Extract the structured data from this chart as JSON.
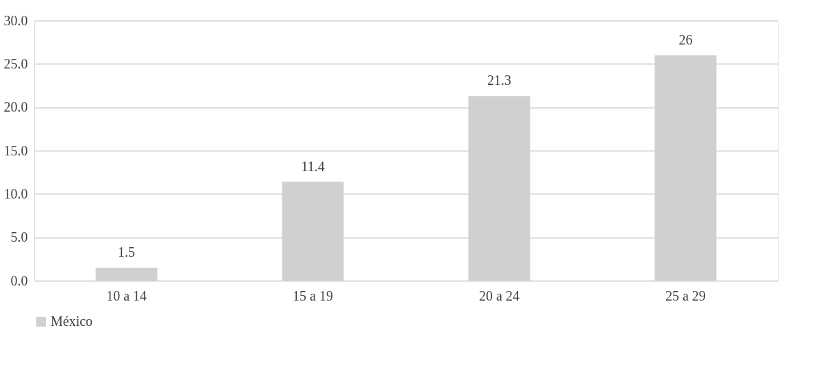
{
  "chart_data": {
    "type": "bar",
    "categories": [
      "10 a 14",
      "15 a 19",
      "20 a 24",
      "25 a 29"
    ],
    "series": [
      {
        "name": "México",
        "color": "#d0d0d0",
        "values": [
          1.5,
          11.4,
          21.3,
          26
        ]
      }
    ],
    "ylim": [
      0,
      30
    ],
    "yticks": [
      {
        "value": 0,
        "label": "0.0"
      },
      {
        "value": 5,
        "label": "5.0"
      },
      {
        "value": 10,
        "label": "10.0"
      },
      {
        "value": 15,
        "label": "15.0"
      },
      {
        "value": 20,
        "label": "20.0"
      },
      {
        "value": 25,
        "label": "25.0"
      },
      {
        "value": 30,
        "label": "30.0"
      }
    ],
    "grid": "y",
    "legend": "bottom",
    "data_labels": true
  }
}
